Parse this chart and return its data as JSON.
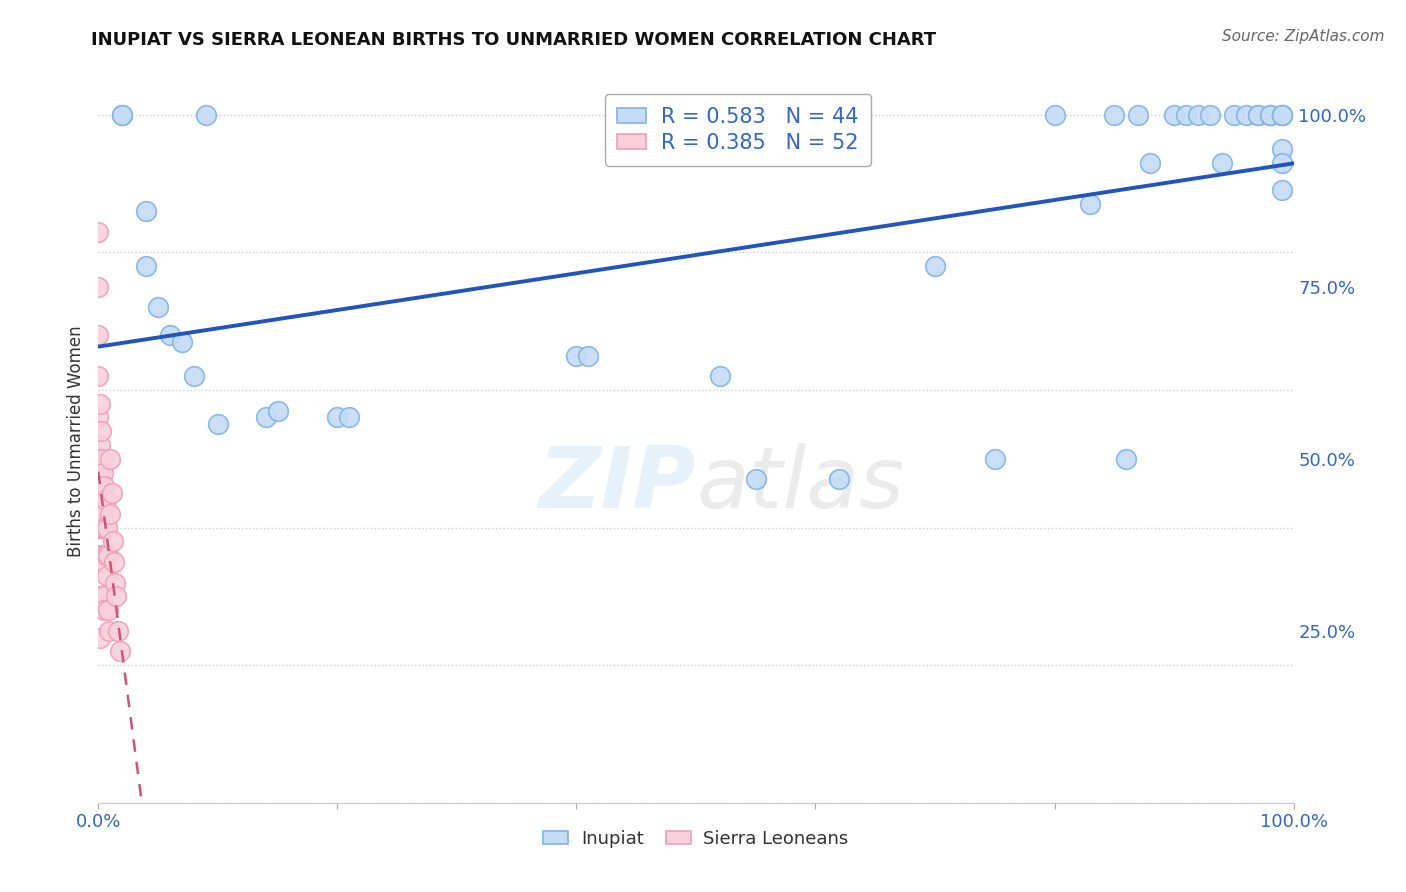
{
  "title": "INUPIAT VS SIERRA LEONEAN BIRTHS TO UNMARRIED WOMEN CORRELATION CHART",
  "source": "Source: ZipAtlas.com",
  "ylabel": "Births to Unmarried Women",
  "watermark": "ZIPatlas",
  "inupiat_R": 0.583,
  "inupiat_N": 44,
  "sierraleonean_R": 0.385,
  "sierraleonean_N": 52,
  "inupiat_color": "#7fb3e8",
  "inupiat_fill": "#c5dcf5",
  "sierraleonean_color": "#f0a0b8",
  "sierraleonean_fill": "#f8d0dc",
  "blue_line_color": "#2255bb",
  "pink_line_color": "#cc5577",
  "inupiat_x": [
    0.02,
    0.02,
    0.04,
    0.04,
    0.05,
    0.06,
    0.07,
    0.08,
    0.09,
    0.1,
    0.14,
    0.15,
    0.2,
    0.21,
    0.4,
    0.41,
    0.52,
    0.55,
    0.62,
    0.7,
    0.75,
    0.8,
    0.83,
    0.85,
    0.86,
    0.87,
    0.88,
    0.9,
    0.91,
    0.92,
    0.93,
    0.94,
    0.95,
    0.96,
    0.97,
    0.97,
    0.98,
    0.98,
    0.99,
    0.99,
    0.99,
    0.99,
    0.99,
    0.99
  ],
  "inupiat_y": [
    1.0,
    1.0,
    0.86,
    0.78,
    0.72,
    0.68,
    0.67,
    0.62,
    1.0,
    0.55,
    0.56,
    0.57,
    0.56,
    0.56,
    0.65,
    0.65,
    0.62,
    0.47,
    0.47,
    0.78,
    0.5,
    1.0,
    0.87,
    1.0,
    0.5,
    1.0,
    0.93,
    1.0,
    1.0,
    1.0,
    1.0,
    0.93,
    1.0,
    1.0,
    1.0,
    1.0,
    1.0,
    1.0,
    1.0,
    1.0,
    0.95,
    0.93,
    0.89,
    1.0
  ],
  "sierra_x": [
    0.0,
    0.0,
    0.0,
    0.0,
    0.0,
    0.0,
    0.0,
    0.0,
    0.0,
    0.0,
    0.001,
    0.001,
    0.001,
    0.001,
    0.001,
    0.001,
    0.001,
    0.001,
    0.002,
    0.002,
    0.002,
    0.002,
    0.002,
    0.003,
    0.003,
    0.003,
    0.003,
    0.003,
    0.004,
    0.004,
    0.004,
    0.004,
    0.005,
    0.005,
    0.005,
    0.005,
    0.006,
    0.006,
    0.007,
    0.007,
    0.008,
    0.008,
    0.009,
    0.01,
    0.01,
    0.011,
    0.012,
    0.013,
    0.014,
    0.015,
    0.016,
    0.018
  ],
  "sierra_y": [
    0.83,
    0.75,
    0.68,
    0.62,
    0.56,
    0.5,
    0.46,
    0.43,
    0.4,
    0.35,
    0.58,
    0.52,
    0.48,
    0.44,
    0.4,
    0.36,
    0.3,
    0.24,
    0.54,
    0.5,
    0.45,
    0.4,
    0.35,
    0.5,
    0.45,
    0.4,
    0.35,
    0.3,
    0.48,
    0.42,
    0.36,
    0.3,
    0.46,
    0.4,
    0.35,
    0.28,
    0.44,
    0.36,
    0.4,
    0.33,
    0.36,
    0.28,
    0.25,
    0.5,
    0.42,
    0.45,
    0.38,
    0.35,
    0.32,
    0.3,
    0.25,
    0.22
  ],
  "ylim": [
    0.0,
    1.05
  ],
  "xlim": [
    0.0,
    1.0
  ],
  "yticks": [
    0.0,
    0.25,
    0.5,
    0.75,
    1.0
  ],
  "ytick_labels": [
    "",
    "25.0%",
    "50.0%",
    "75.0%",
    "100.0%"
  ],
  "xticks": [
    0.0,
    0.2,
    0.4,
    0.6,
    0.8,
    1.0
  ],
  "grid_color": "#cccccc",
  "background_color": "#ffffff",
  "text_color": "#3366cc",
  "label_color": "#333333",
  "title_color": "#111111"
}
